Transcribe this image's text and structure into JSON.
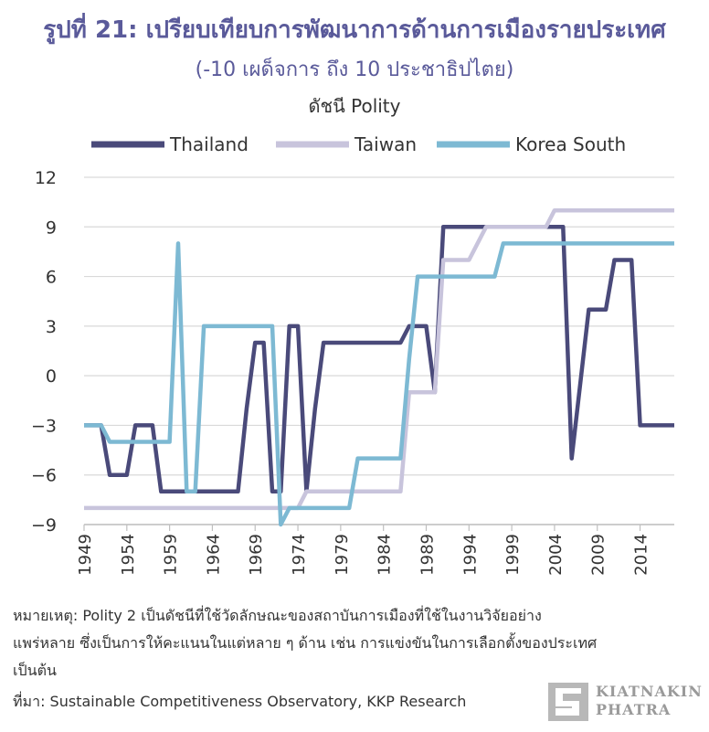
{
  "title": "รูปที่ 21: เปรียบเทียบการพัฒนาการด้านการเมืองรายประเทศ",
  "subtitle": "(-10 เผด็จการ ถึง 10 ประชาธิปไตย)",
  "notes": {
    "line1": "หมายเหตุ: Polity 2 เป็นดัชนีที่ใช้วัดลักษณะของสถาบันการเมืองที่ใช้ในงานวิจัยอย่าง",
    "line2": "แพร่หลาย ซึ่งเป็นการให้คะแนนในแต่หลาย ๆ ด้าน เช่น การแข่งขันในการเลือกตั้งของประเทศ",
    "line3": "เป็นต้น",
    "source": "ที่มา: Sustainable Competitiveness Observatory, KKP Research"
  },
  "logo": {
    "line1": "KIATNAKIN",
    "line2": "PHATRA"
  },
  "chart_data": {
    "type": "line",
    "title": "รูปที่ 21: เปรียบเทียบการพัฒนาการด้านการเมืองรายประเทศ",
    "ylabel": "ดัชนี Polity",
    "xlabel": "",
    "ylim": [
      -9,
      12
    ],
    "yticks": [
      -9,
      -6,
      -3,
      0,
      3,
      6,
      9,
      12
    ],
    "xlim": [
      1949,
      2018
    ],
    "xticks": [
      1949,
      1954,
      1959,
      1964,
      1969,
      1974,
      1979,
      1984,
      1989,
      1994,
      1999,
      2004,
      2009,
      2014
    ],
    "grid": true,
    "legend_position": "top",
    "series": [
      {
        "name": "Thailand",
        "color": "#4a4a7a",
        "points": [
          [
            1949,
            -3
          ],
          [
            1951,
            -3
          ],
          [
            1952,
            -6
          ],
          [
            1954,
            -6
          ],
          [
            1955,
            -3
          ],
          [
            1957,
            -3
          ],
          [
            1958,
            -7
          ],
          [
            1967,
            -7
          ],
          [
            1968,
            -2
          ],
          [
            1969,
            2
          ],
          [
            1970,
            2
          ],
          [
            1971,
            -7
          ],
          [
            1972,
            -7
          ],
          [
            1973,
            3
          ],
          [
            1974,
            3
          ],
          [
            1975,
            -7
          ],
          [
            1976,
            -2
          ],
          [
            1977,
            2
          ],
          [
            1986,
            2
          ],
          [
            1987,
            3
          ],
          [
            1989,
            3
          ],
          [
            1990,
            -1
          ],
          [
            1991,
            9
          ],
          [
            2005,
            9
          ],
          [
            2006,
            -5
          ],
          [
            2008,
            4
          ],
          [
            2010,
            4
          ],
          [
            2011,
            7
          ],
          [
            2013,
            7
          ],
          [
            2014,
            -3
          ],
          [
            2018,
            -3
          ]
        ]
      },
      {
        "name": "Taiwan",
        "color": "#c8c4dc",
        "points": [
          [
            1949,
            -8
          ],
          [
            1974,
            -8
          ],
          [
            1975,
            -7
          ],
          [
            1986,
            -7
          ],
          [
            1987,
            -1
          ],
          [
            1990,
            -1
          ],
          [
            1991,
            7
          ],
          [
            1994,
            7
          ],
          [
            1996,
            9
          ],
          [
            2003,
            9
          ],
          [
            2004,
            10
          ],
          [
            2018,
            10
          ]
        ]
      },
      {
        "name": "Korea South",
        "color": "#7db9d3",
        "points": [
          [
            1949,
            -3
          ],
          [
            1951,
            -3
          ],
          [
            1952,
            -4
          ],
          [
            1959,
            -4
          ],
          [
            1960,
            8
          ],
          [
            1961,
            -7
          ],
          [
            1962,
            -7
          ],
          [
            1963,
            3
          ],
          [
            1971,
            3
          ],
          [
            1972,
            -9
          ],
          [
            1973,
            -8
          ],
          [
            1980,
            -8
          ],
          [
            1981,
            -5
          ],
          [
            1986,
            -5
          ],
          [
            1987,
            1
          ],
          [
            1988,
            6
          ],
          [
            1997,
            6
          ],
          [
            1998,
            8
          ],
          [
            2018,
            8
          ]
        ]
      }
    ]
  }
}
